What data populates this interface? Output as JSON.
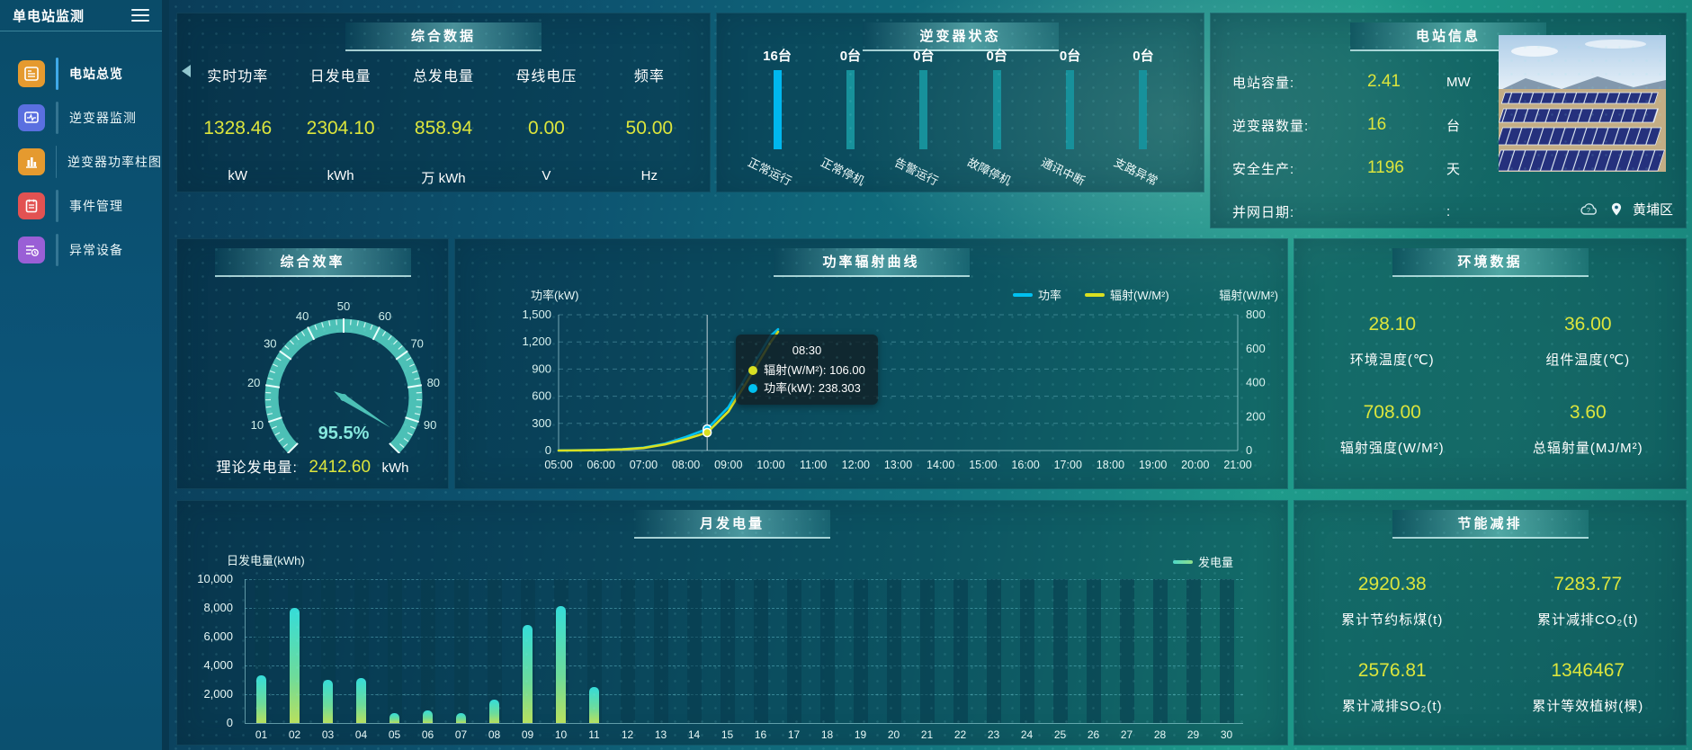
{
  "sidebar": {
    "title": "单电站监测",
    "items": [
      {
        "label": "电站总览",
        "icon": "overview-icon",
        "color": "#e59a2f",
        "active": true
      },
      {
        "label": "逆变器监测",
        "icon": "inverter-monitor-icon",
        "color": "#5a6fe0",
        "active": false
      },
      {
        "label": "逆变器功率柱图",
        "icon": "inverter-power-bars-icon",
        "color": "#e59a2f",
        "active": false
      },
      {
        "label": "事件管理",
        "icon": "event-management-icon",
        "color": "#e25252",
        "active": false
      },
      {
        "label": "异常设备",
        "icon": "abnormal-device-icon",
        "color": "#9a5fd6",
        "active": false
      }
    ]
  },
  "panels": {
    "summary": {
      "title": "综合数据",
      "metrics": [
        {
          "label": "实时功率",
          "value": "1328.46",
          "unit": "kW"
        },
        {
          "label": "日发电量",
          "value": "2304.10",
          "unit": "kWh"
        },
        {
          "label": "总发电量",
          "value": "858.94",
          "unit": "万 kWh"
        },
        {
          "label": "母线电压",
          "value": "0.00",
          "unit": "V"
        },
        {
          "label": "频率",
          "value": "50.00",
          "unit": "Hz"
        }
      ]
    },
    "inverter_status": {
      "title": "逆变器状态",
      "chart_data": {
        "type": "bar",
        "categories": [
          "正常运行",
          "正常停机",
          "告警运行",
          "故障停机",
          "通讯中断",
          "支路异常"
        ],
        "values": [
          16,
          0,
          0,
          0,
          0,
          0
        ],
        "count_unit": "台",
        "bar_colors": [
          "#00b7ee",
          "#17919b",
          "#17919b",
          "#17919b",
          "#17919b",
          "#17919b"
        ]
      }
    },
    "station_info": {
      "title": "电站信息",
      "rows": [
        {
          "label": "电站容量:",
          "value": "2.41",
          "unit": "MW"
        },
        {
          "label": "逆变器数量:",
          "value": "16",
          "unit": "台"
        },
        {
          "label": "安全生产:",
          "value": "1196",
          "unit": "天"
        },
        {
          "label": "并网日期:",
          "value": "",
          "unit": ":"
        }
      ],
      "photo": "solar-farm-photo",
      "location": "黄埔区"
    },
    "efficiency": {
      "title": "综合效率",
      "chart_data": {
        "type": "gauge",
        "min": 0,
        "max": 100,
        "tick_step": 10,
        "value": 95.5,
        "unit": "%"
      },
      "theory_label": "理论发电量:",
      "theory_value": "2412.60",
      "theory_unit": "kWh"
    },
    "curve": {
      "title": "功率辐射曲线",
      "chart_data": {
        "type": "line",
        "x_range": [
          5,
          21
        ],
        "x_ticks": [
          "05:00",
          "06:00",
          "07:00",
          "08:00",
          "09:00",
          "10:00",
          "11:00",
          "12:00",
          "13:00",
          "14:00",
          "15:00",
          "16:00",
          "17:00",
          "18:00",
          "19:00",
          "20:00",
          "21:00"
        ],
        "left_axis": {
          "name": "功率(kW)",
          "min": 0,
          "max": 1500,
          "step": 300
        },
        "right_axis": {
          "name": "辐射(W/M²)",
          "min": 0,
          "max": 800,
          "step": 200
        },
        "hover_hour": 8.5,
        "series": [
          {
            "name": "功率",
            "color": "#00c0f0",
            "axis": "left",
            "points": [
              [
                5,
                1
              ],
              [
                5.5,
                3
              ],
              [
                6,
                6
              ],
              [
                6.5,
                14
              ],
              [
                7,
                32
              ],
              [
                7.5,
                75
              ],
              [
                8,
                150
              ],
              [
                8.5,
                238.3
              ],
              [
                9,
                480
              ],
              [
                9.5,
                880
              ],
              [
                10,
                1270
              ],
              [
                10.17,
                1340
              ]
            ]
          },
          {
            "name": "辐射(W/M²)",
            "color": "#d9e021",
            "axis": "right",
            "points": [
              [
                5,
                0
              ],
              [
                5.5,
                1
              ],
              [
                6,
                3
              ],
              [
                6.5,
                7
              ],
              [
                7,
                15
              ],
              [
                7.5,
                36
              ],
              [
                8,
                68
              ],
              [
                8.5,
                106
              ],
              [
                9,
                230
              ],
              [
                9.5,
                430
              ],
              [
                10,
                640
              ],
              [
                10.17,
                700
              ]
            ]
          }
        ]
      },
      "tooltip": {
        "time": "08:30",
        "series": [
          {
            "name": "辐射(W/M²)",
            "value": "106.00",
            "color": "#d9e021"
          },
          {
            "name": "功率(kW)",
            "value": "238.303",
            "color": "#00c0f0"
          }
        ]
      }
    },
    "env": {
      "title": "环境数据",
      "items": [
        {
          "value": "28.10",
          "label": "环境温度(℃)"
        },
        {
          "value": "36.00",
          "label": "组件温度(℃)"
        },
        {
          "value": "708.00",
          "label": "辐射强度(W/M²)"
        },
        {
          "value": "3.60",
          "label": "总辐射量(MJ/M²)"
        }
      ]
    },
    "month": {
      "title": "月发电量",
      "chart_data": {
        "type": "bar",
        "legend": "发电量",
        "y_axis": {
          "name": "日发电量(kWh)",
          "min": 0,
          "max": 10000,
          "step": 2000
        },
        "categories": [
          "01",
          "02",
          "03",
          "04",
          "05",
          "06",
          "07",
          "08",
          "09",
          "10",
          "11",
          "12",
          "13",
          "14",
          "15",
          "16",
          "17",
          "18",
          "19",
          "20",
          "21",
          "22",
          "23",
          "24",
          "25",
          "26",
          "27",
          "28",
          "29",
          "30"
        ],
        "values": [
          3300,
          8000,
          3000,
          3100,
          700,
          900,
          700,
          1600,
          6800,
          8100,
          2500,
          0,
          0,
          0,
          0,
          0,
          0,
          0,
          0,
          0,
          0,
          0,
          0,
          0,
          0,
          0,
          0,
          0,
          0,
          0
        ]
      }
    },
    "saving": {
      "title": "节能减排",
      "items": [
        {
          "value": "2920.38",
          "label": "累计节约标煤(t)"
        },
        {
          "value": "7283.77",
          "label": "累计减排CO₂(t)"
        },
        {
          "value": "2576.81",
          "label": "累计减排SO₂(t)"
        },
        {
          "value": "1346467",
          "label": "累计等效植树(棵)"
        }
      ]
    }
  },
  "colors": {
    "value_yellow": "#dce53c",
    "gauge_teal": "#4cc0b6",
    "active_bar_cyan": "#00b7ee",
    "idle_bar_teal": "#17919b",
    "power_line": "#00c0f0",
    "radiation_line": "#d9e021"
  }
}
